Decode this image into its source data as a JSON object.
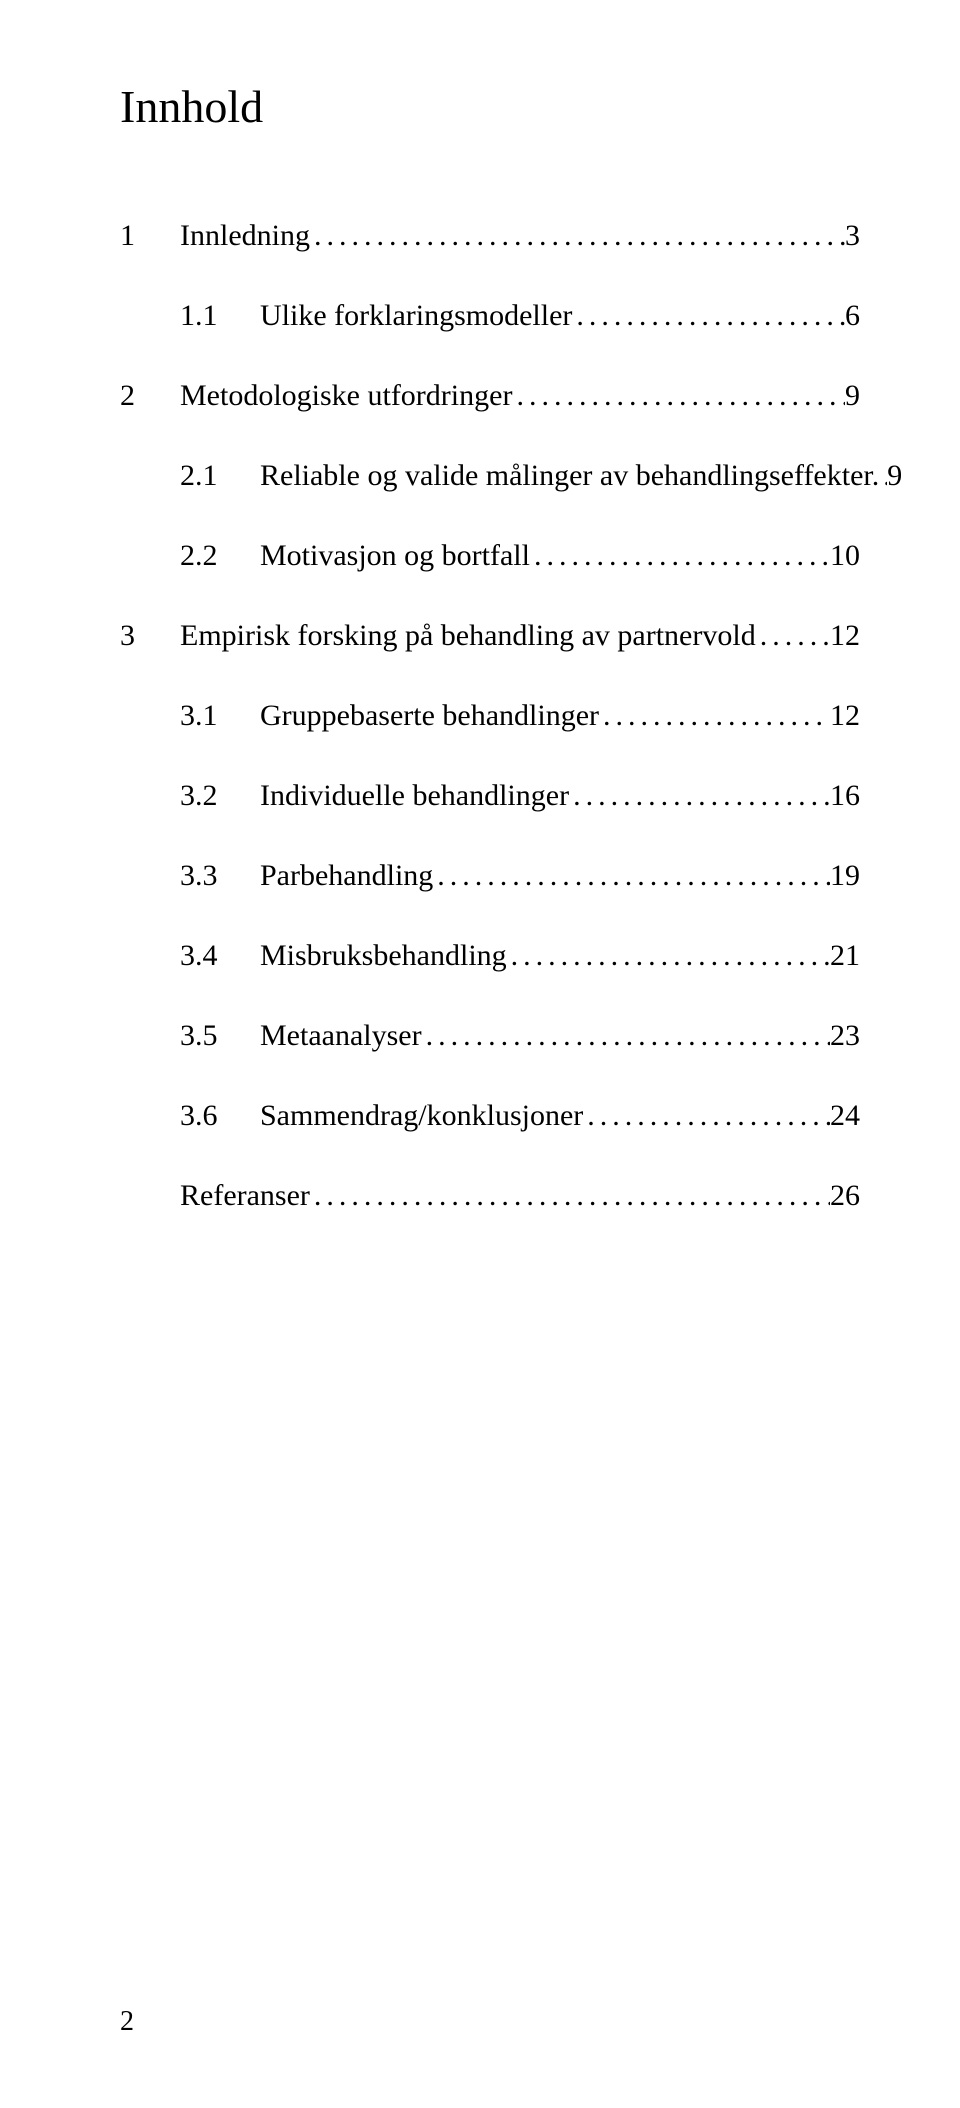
{
  "title": "Innhold",
  "toc": {
    "items": [
      {
        "level": 1,
        "num": "1",
        "label": "Innledning",
        "page": "3"
      },
      {
        "level": 2,
        "num": "1.1",
        "label": "Ulike forklaringsmodeller",
        "page": "6"
      },
      {
        "level": 1,
        "num": "2",
        "label": "Metodologiske utfordringer",
        "page": "9"
      },
      {
        "level": 2,
        "num": "2.1",
        "label": "Reliable og valide målinger av behandlingseffekter.",
        "page": "9"
      },
      {
        "level": 2,
        "num": "2.2",
        "label": "Motivasjon og bortfall",
        "page": "10"
      },
      {
        "level": 1,
        "num": "3",
        "label": "Empirisk forsking på behandling av partnervold",
        "page": "12"
      },
      {
        "level": 2,
        "num": "3.1",
        "label": "Gruppebaserte behandlinger",
        "page": "12"
      },
      {
        "level": 2,
        "num": "3.2",
        "label": "Individuelle behandlinger",
        "page": "16"
      },
      {
        "level": 2,
        "num": "3.3",
        "label": "Parbehandling",
        "page": "19"
      },
      {
        "level": 2,
        "num": "3.4",
        "label": "Misbruksbehandling",
        "page": "21"
      },
      {
        "level": 2,
        "num": "3.5",
        "label": "Metaanalyser",
        "page": "23"
      },
      {
        "level": 2,
        "num": "3.6",
        "label": "Sammendrag/konklusjoner",
        "page": "24"
      }
    ],
    "references": {
      "label": "Referanser",
      "page": "26"
    }
  },
  "page_number": "2",
  "colors": {
    "text": "#000000",
    "background": "#ffffff"
  },
  "typography": {
    "title_fontsize": 46,
    "body_fontsize": 30,
    "font_family": "Times New Roman"
  }
}
